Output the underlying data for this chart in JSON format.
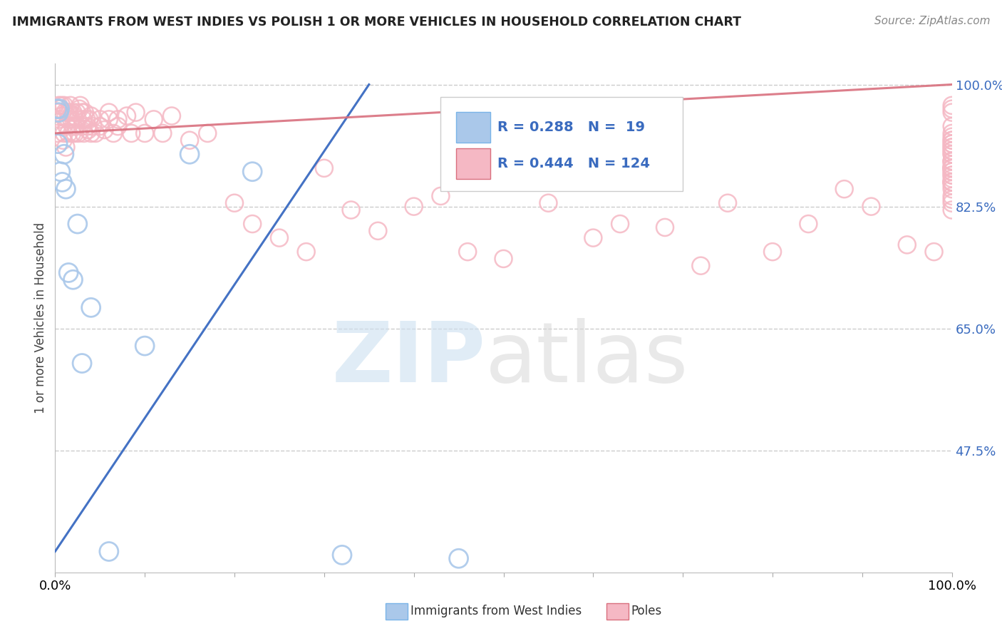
{
  "title": "IMMIGRANTS FROM WEST INDIES VS POLISH 1 OR MORE VEHICLES IN HOUSEHOLD CORRELATION CHART",
  "source": "Source: ZipAtlas.com",
  "ylabel": "1 or more Vehicles in Household",
  "xlim": [
    0.0,
    100.0
  ],
  "ylim_min": 30.0,
  "ylim_max": 103.0,
  "yticks": [
    47.5,
    65.0,
    82.5,
    100.0
  ],
  "ytick_labels": [
    "47.5%",
    "65.0%",
    "82.5%",
    "100.0%"
  ],
  "background_color": "#ffffff",
  "grid_color": "#cccccc",
  "west_color": "#aac8ea",
  "poles_color": "#f5b8c4",
  "west_line_color": "#4472c4",
  "poles_line_color": "#d9707e",
  "legend_r_west": "0.288",
  "legend_n_west": "19",
  "legend_r_poles": "0.444",
  "legend_n_poles": "124",
  "west_x": [
    0.2,
    0.3,
    0.4,
    0.5,
    0.6,
    0.8,
    1.0,
    1.2,
    1.5,
    2.0,
    2.5,
    3.0,
    4.0,
    6.0,
    10.0,
    15.0,
    22.0,
    32.0,
    45.0
  ],
  "west_y": [
    96.5,
    91.5,
    96.0,
    96.5,
    87.5,
    86.0,
    90.0,
    85.0,
    73.0,
    72.0,
    80.0,
    60.0,
    68.0,
    33.0,
    62.5,
    90.0,
    87.5,
    32.5,
    32.0
  ],
  "poles_x": [
    0.2,
    0.3,
    0.4,
    0.5,
    0.5,
    0.6,
    0.7,
    0.8,
    0.9,
    1.0,
    1.0,
    1.1,
    1.2,
    1.3,
    1.4,
    1.5,
    1.5,
    1.6,
    1.7,
    1.8,
    1.9,
    2.0,
    2.0,
    2.1,
    2.2,
    2.3,
    2.4,
    2.5,
    2.6,
    2.7,
    2.8,
    3.0,
    3.0,
    3.1,
    3.2,
    3.3,
    3.5,
    3.6,
    3.7,
    3.8,
    4.0,
    4.0,
    4.2,
    4.5,
    5.0,
    5.0,
    5.5,
    6.0,
    6.0,
    6.5,
    7.0,
    7.0,
    8.0,
    8.5,
    9.0,
    10.0,
    11.0,
    12.0,
    13.0,
    15.0,
    17.0,
    20.0,
    22.0,
    25.0,
    28.0,
    30.0,
    33.0,
    36.0,
    40.0,
    43.0,
    46.0,
    50.0,
    55.0,
    60.0,
    63.0,
    68.0,
    72.0,
    75.0,
    80.0,
    84.0,
    88.0,
    91.0,
    95.0,
    98.0,
    100.0,
    100.0,
    100.0,
    100.0,
    100.0,
    100.0,
    100.0,
    100.0,
    100.0,
    100.0,
    100.0,
    100.0,
    100.0,
    100.0,
    100.0,
    100.0,
    100.0,
    100.0,
    100.0,
    100.0,
    100.0,
    100.0,
    100.0,
    100.0,
    100.0,
    100.0,
    100.0,
    100.0,
    100.0,
    100.0,
    100.0,
    100.0,
    100.0,
    100.0,
    100.0,
    100.0,
    100.0,
    100.0,
    100.0,
    100.0
  ],
  "poles_y": [
    96.0,
    93.0,
    97.0,
    96.5,
    95.0,
    94.0,
    97.0,
    95.5,
    92.0,
    97.0,
    93.0,
    96.0,
    91.0,
    94.0,
    96.0,
    95.0,
    93.0,
    96.0,
    97.0,
    95.0,
    93.0,
    96.0,
    94.0,
    95.5,
    93.0,
    94.0,
    96.0,
    95.0,
    93.0,
    96.5,
    97.0,
    96.0,
    94.0,
    95.0,
    93.0,
    96.0,
    95.0,
    94.0,
    93.5,
    95.0,
    95.5,
    93.0,
    94.0,
    93.0,
    95.0,
    94.0,
    93.5,
    96.0,
    95.0,
    93.0,
    95.0,
    94.0,
    95.5,
    93.0,
    96.0,
    93.0,
    95.0,
    93.0,
    95.5,
    92.0,
    93.0,
    83.0,
    80.0,
    78.0,
    76.0,
    88.0,
    82.0,
    79.0,
    82.5,
    84.0,
    76.0,
    75.0,
    83.0,
    78.0,
    80.0,
    79.5,
    74.0,
    83.0,
    76.0,
    80.0,
    85.0,
    82.5,
    77.0,
    76.0,
    93.0,
    96.0,
    97.0,
    96.5,
    94.0,
    91.5,
    88.0,
    86.0,
    84.0,
    83.5,
    82.0,
    91.0,
    89.0,
    92.5,
    90.5,
    87.0,
    85.0,
    83.0,
    88.0,
    87.5,
    86.0,
    91.0,
    90.0,
    88.5,
    89.0,
    92.0,
    87.0,
    86.5,
    88.0,
    90.0,
    86.0,
    91.5,
    89.0,
    88.0,
    87.5,
    85.5,
    90.5,
    92.0,
    88.0,
    86.0
  ]
}
